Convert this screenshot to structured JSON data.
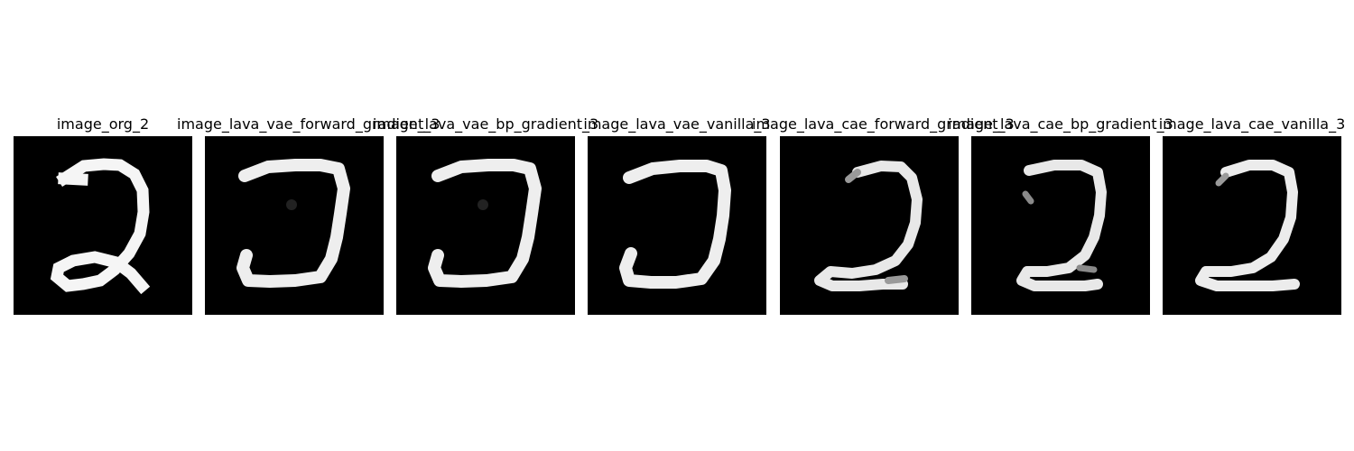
{
  "figure": {
    "panels": [
      {
        "title": "image_org_2",
        "digit_shape": "loop-two"
      },
      {
        "title": "image_lava_vae_forward_gradient_3",
        "digit_shape": "reversed-c"
      },
      {
        "title": "image_lava_vae_bp_gradient_3",
        "digit_shape": "reversed-c"
      },
      {
        "title": "image_lava_vae_vanilla_3",
        "digit_shape": "reversed-c"
      },
      {
        "title": "image_lava_cae_forward_gradient_3",
        "digit_shape": "two"
      },
      {
        "title": "image_lava_cae_bp_gradient_3",
        "digit_shape": "two"
      },
      {
        "title": "image_lava_cae_vanilla_3",
        "digit_shape": "two"
      }
    ],
    "colors": {
      "background": "#000000",
      "stroke": "#f2f2f2"
    }
  }
}
